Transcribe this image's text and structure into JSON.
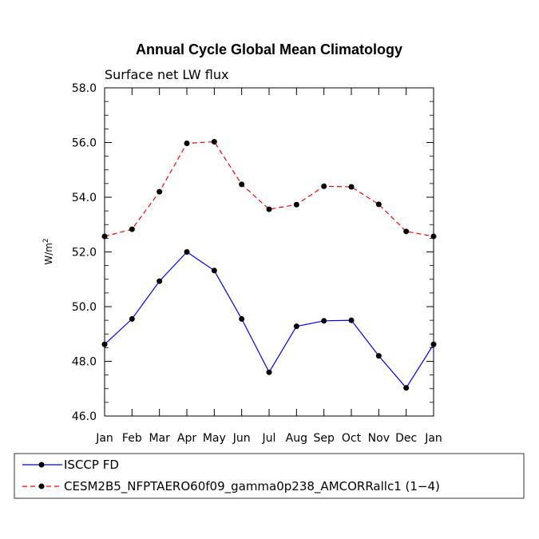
{
  "chart_data": {
    "type": "line",
    "title": "Annual Cycle Global Mean Climatology",
    "subtitle": "Surface net LW flux",
    "ylabel": "W/m",
    "ylabel_sup": "2",
    "xlabel": "",
    "categories": [
      "Jan",
      "Feb",
      "Mar",
      "Apr",
      "May",
      "Jun",
      "Jul",
      "Aug",
      "Sep",
      "Oct",
      "Nov",
      "Dec",
      "Jan"
    ],
    "ylim": [
      46.0,
      58.0
    ],
    "yticks": [
      46.0,
      48.0,
      50.0,
      52.0,
      54.0,
      56.0,
      58.0
    ],
    "ytick_labels": [
      "46.0",
      "48.0",
      "50.0",
      "52.0",
      "54.0",
      "56.0",
      "58.0"
    ],
    "grid": false,
    "legend_position": "bottom",
    "series": [
      {
        "name": "ISCCP FD",
        "color": "#0000ff",
        "dash": "solid",
        "values": [
          48.62,
          49.55,
          50.93,
          52.0,
          51.32,
          49.55,
          47.6,
          49.28,
          49.48,
          49.5,
          48.2,
          47.03,
          48.62
        ]
      },
      {
        "name": "CESM2B5_NFPTAERO60f09_gamma0p238_AMCORRallc1 (1−4)",
        "color": "#ff0000",
        "dash": "dashed",
        "values": [
          52.57,
          52.83,
          54.2,
          55.97,
          56.03,
          54.47,
          53.56,
          53.73,
          54.4,
          54.38,
          53.74,
          52.75,
          52.57
        ]
      }
    ]
  }
}
